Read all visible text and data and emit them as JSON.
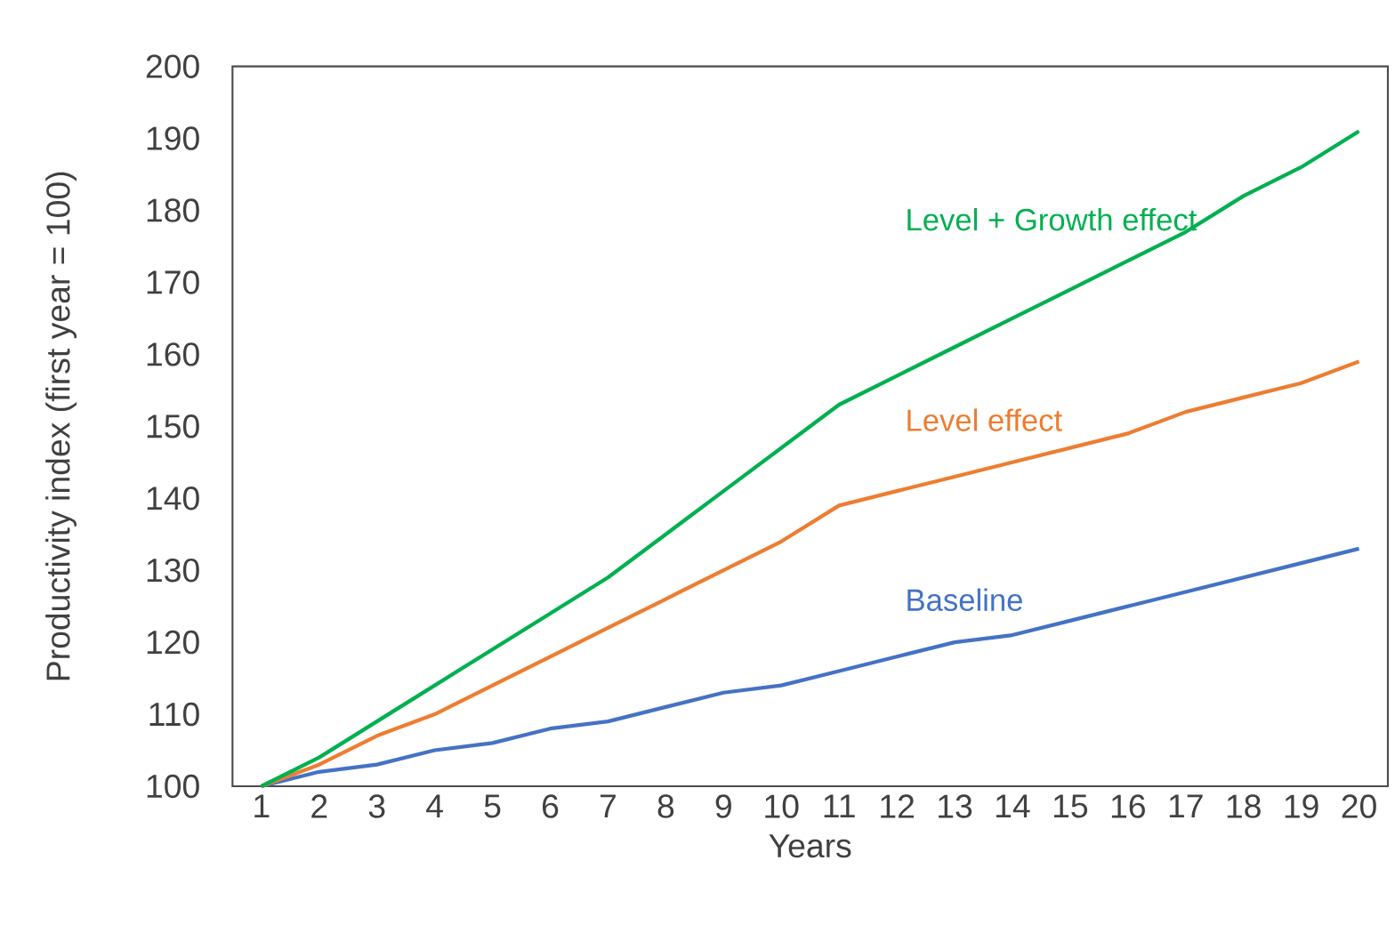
{
  "chart_data": {
    "type": "line",
    "xlabel": "Years",
    "ylabel": "Productivity index (first year = 100)",
    "x": [
      1,
      2,
      3,
      4,
      5,
      6,
      7,
      8,
      9,
      10,
      11,
      12,
      13,
      14,
      15,
      16,
      17,
      18,
      19,
      20
    ],
    "xlim": [
      0.5,
      20.5
    ],
    "xticks": [
      1,
      2,
      3,
      4,
      5,
      6,
      7,
      8,
      9,
      10,
      11,
      12,
      13,
      14,
      15,
      16,
      17,
      18,
      19,
      20
    ],
    "ylim": [
      100,
      200
    ],
    "yticks": [
      100,
      110,
      120,
      130,
      140,
      150,
      160,
      170,
      180,
      190,
      200
    ],
    "grid": false,
    "legend": false,
    "marker": "none",
    "line_style": "solid",
    "series": [
      {
        "name": "Baseline",
        "color": "#4472c4",
        "values": [
          100,
          102,
          103,
          105,
          106,
          108,
          109,
          111,
          113,
          114,
          116,
          118,
          120,
          121,
          123,
          125,
          127,
          129,
          131,
          133
        ]
      },
      {
        "name": "Level effect",
        "color": "#ed7d31",
        "values": [
          100,
          103,
          107,
          110,
          114,
          118,
          122,
          126,
          130,
          134,
          139,
          141,
          143,
          145,
          147,
          149,
          152,
          154,
          156,
          159
        ]
      },
      {
        "name": "Level + Growth effect",
        "color": "#00b050",
        "values": [
          100,
          104,
          109,
          114,
          119,
          124,
          129,
          135,
          141,
          147,
          153,
          157,
          161,
          165,
          169,
          173,
          177,
          182,
          186,
          191
        ]
      }
    ]
  }
}
